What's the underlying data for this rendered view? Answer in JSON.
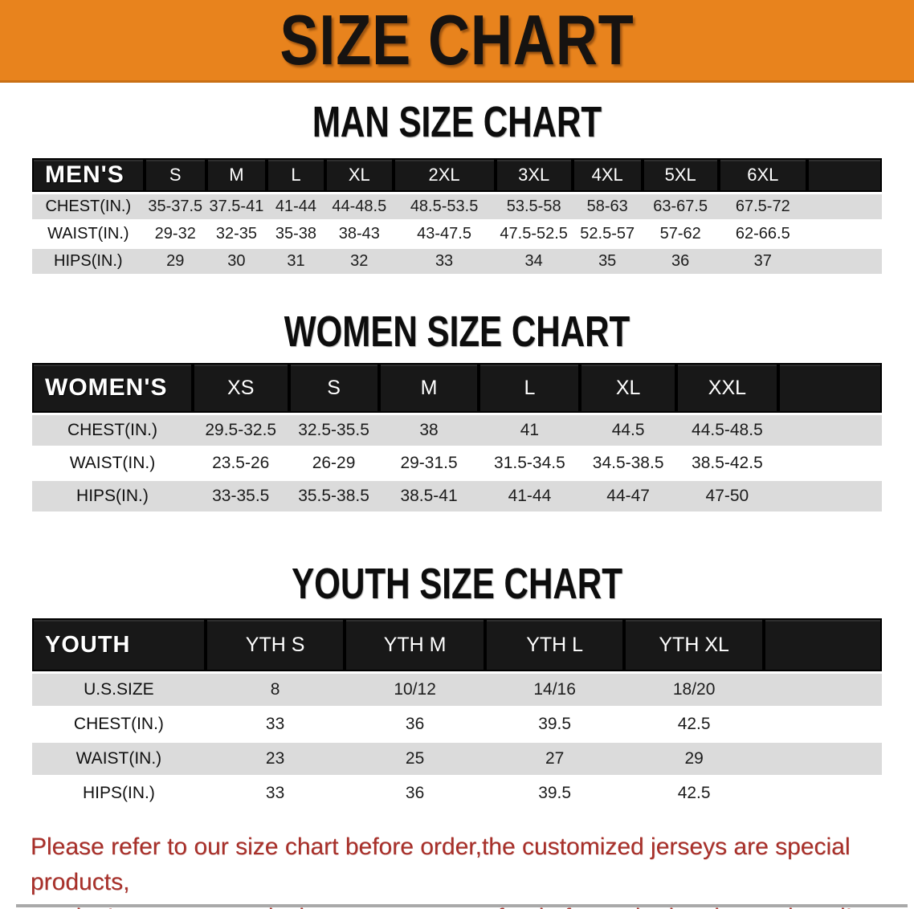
{
  "banner": {
    "title": "SIZE CHART",
    "bg_color": "#E8831D"
  },
  "sections": [
    {
      "heading": "MAN SIZE CHART",
      "table": {
        "label": "MEN'S",
        "columns": [
          "S",
          "M",
          "L",
          "XL",
          "2XL",
          "3XL",
          "4XL",
          "5XL",
          "6XL"
        ],
        "rows": [
          {
            "label": "CHEST(IN.)",
            "values": [
              "35-37.5",
              "37.5-41",
              "41-44",
              "44-48.5",
              "48.5-53.5",
              "53.5-58",
              "58-63",
              "63-67.5",
              "67.5-72"
            ]
          },
          {
            "label": "WAIST(IN.)",
            "values": [
              "29-32",
              "32-35",
              "35-38",
              "38-43",
              "43-47.5",
              "47.5-52.5",
              "52.5-57",
              "57-62",
              "62-66.5"
            ]
          },
          {
            "label": "HIPS(IN.)",
            "values": [
              "29",
              "30",
              "31",
              "32",
              "33",
              "34",
              "35",
              "36",
              "37"
            ]
          }
        ]
      }
    },
    {
      "heading": "WOMEN SIZE CHART",
      "table": {
        "label": "WOMEN'S",
        "columns": [
          "XS",
          "S",
          "M",
          "L",
          "XL",
          "XXL"
        ],
        "rows": [
          {
            "label": "CHEST(IN.)",
            "values": [
              "29.5-32.5",
              "32.5-35.5",
              "38",
              "41",
              "44.5",
              "44.5-48.5"
            ]
          },
          {
            "label": "WAIST(IN.)",
            "values": [
              "23.5-26",
              "26-29",
              "29-31.5",
              "31.5-34.5",
              "34.5-38.5",
              "38.5-42.5"
            ]
          },
          {
            "label": "HIPS(IN.)",
            "values": [
              "33-35.5",
              "35.5-38.5",
              "38.5-41",
              "41-44",
              "44-47",
              "47-50"
            ]
          }
        ]
      }
    },
    {
      "heading": "YOUTH SIZE CHART",
      "table": {
        "label": "YOUTH",
        "columns": [
          "YTH S",
          "YTH M",
          "YTH L",
          "YTH XL"
        ],
        "rows": [
          {
            "label": "U.S.SIZE",
            "values": [
              "8",
              "10/12",
              "14/16",
              "18/20"
            ]
          },
          {
            "label": "CHEST(IN.)",
            "values": [
              "33",
              "36",
              "39.5",
              "42.5"
            ]
          },
          {
            "label": "WAIST(IN.)",
            "values": [
              "23",
              "25",
              "27",
              "29"
            ]
          },
          {
            "label": "HIPS(IN.)",
            "values": [
              "33",
              "36",
              "39.5",
              "42.5"
            ]
          }
        ]
      }
    }
  ],
  "disclaimer": {
    "line1": "Please refer to our size chart before order,the customized jerseys are special products,",
    "line2": "we don't accept cancel, change, teturn or refund after order has been placed!",
    "color": "#A8302A"
  },
  "colors": {
    "header_bar": "#181818",
    "row_alt": "#DBDBDB",
    "banner_orange": "#E8831D"
  }
}
